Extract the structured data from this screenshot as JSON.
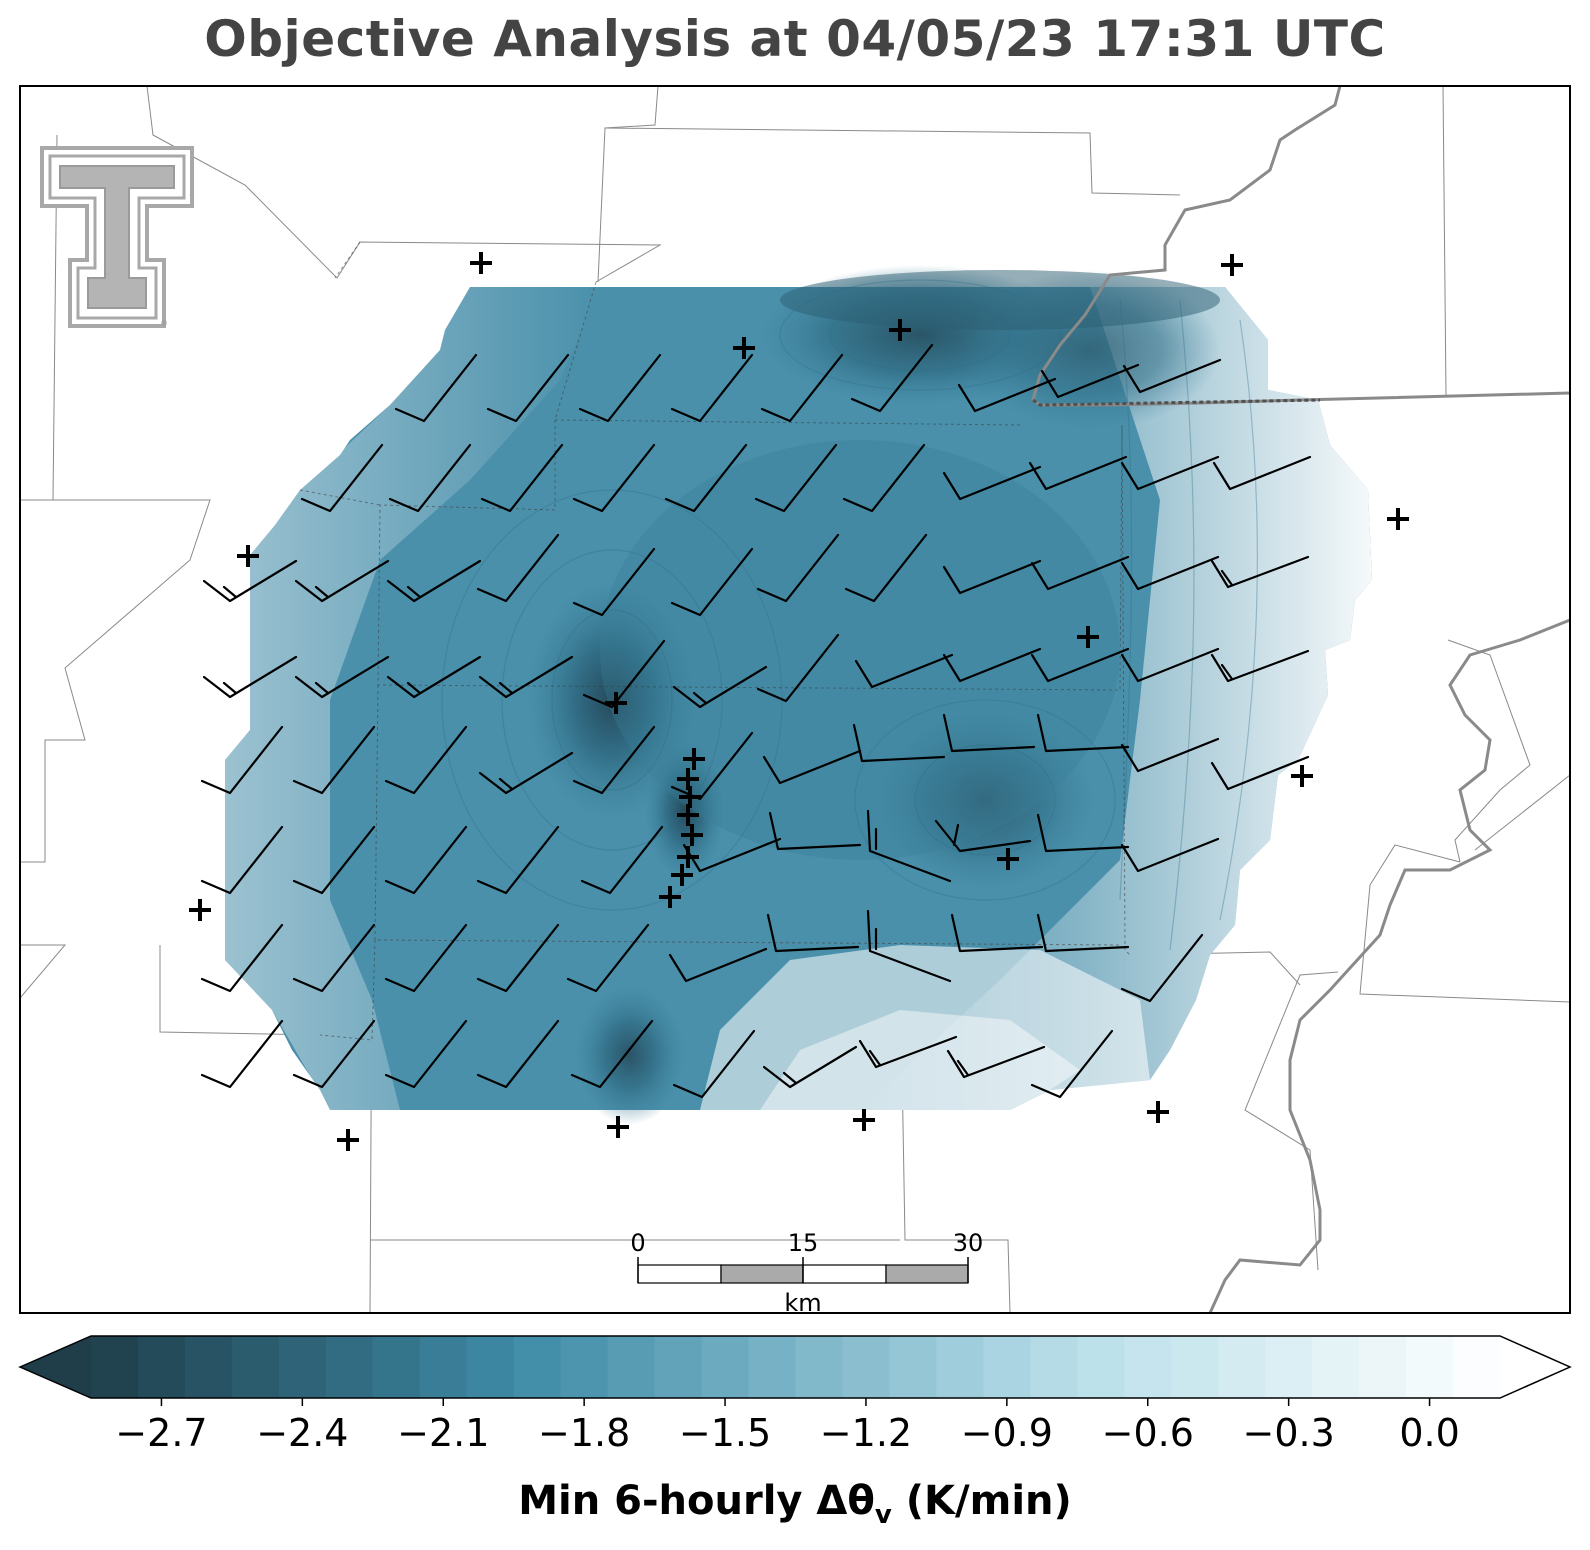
{
  "title": "Objective Analysis at 04/05/23 17:31 UTC",
  "colorbar": {
    "label_prefix": "Min 6-hourly Δθ",
    "label_sub": "v",
    "label_suffix": " (K/min)",
    "ticks": [
      "−2.7",
      "−2.4",
      "−2.1",
      "−1.8",
      "−1.5",
      "−1.2",
      "−0.9",
      "−0.6",
      "−0.3",
      "0.0"
    ],
    "tick_values": [
      -2.7,
      -2.4,
      -2.1,
      -1.8,
      -1.5,
      -1.2,
      -0.9,
      -0.6,
      -0.3,
      0.0
    ],
    "range": [
      -2.85,
      0.15
    ],
    "levels": 30,
    "extend": "both",
    "colors": [
      "#1f3e4a",
      "#3e8aa6",
      "#b9dfe9",
      "#ffffff"
    ]
  },
  "scale_bar": {
    "labels": [
      "0",
      "15",
      "30"
    ],
    "unit": "km"
  },
  "logo": "texas-tech-double-t"
}
